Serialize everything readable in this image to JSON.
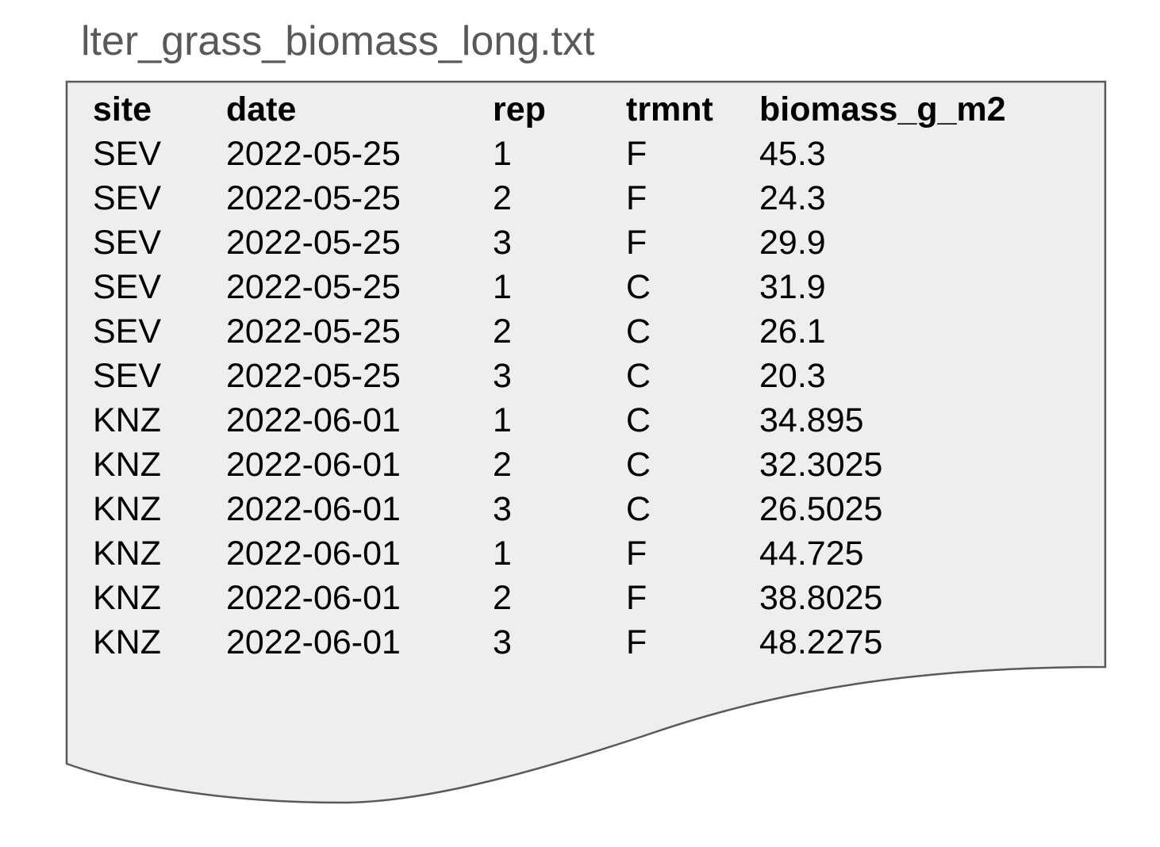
{
  "file": {
    "title": "lter_grass_biomass_long.txt"
  },
  "colors": {
    "title_text": "#595959",
    "document_fill": "#eeeeee",
    "document_border": "#595959",
    "table_text": "#000000"
  },
  "table": {
    "headers": [
      "site",
      "date",
      "rep",
      "trmnt",
      "biomass_g_m2"
    ],
    "rows": [
      [
        "SEV",
        "2022-05-25",
        "1",
        "F",
        "45.3"
      ],
      [
        "SEV",
        "2022-05-25",
        "2",
        "F",
        "24.3"
      ],
      [
        "SEV",
        "2022-05-25",
        "3",
        "F",
        "29.9"
      ],
      [
        "SEV",
        "2022-05-25",
        "1",
        "C",
        "31.9"
      ],
      [
        "SEV",
        "2022-05-25",
        "2",
        "C",
        "26.1"
      ],
      [
        "SEV",
        "2022-05-25",
        "3",
        "C",
        "20.3"
      ],
      [
        "KNZ",
        "2022-06-01",
        "1",
        "C",
        "34.895"
      ],
      [
        "KNZ",
        "2022-06-01",
        "2",
        "C",
        "32.3025"
      ],
      [
        "KNZ",
        "2022-06-01",
        "3",
        "C",
        "26.5025"
      ],
      [
        "KNZ",
        "2022-06-01",
        "1",
        "F",
        "44.725"
      ],
      [
        "KNZ",
        "2022-06-01",
        "2",
        "F",
        "38.8025"
      ],
      [
        "KNZ",
        "2022-06-01",
        "3",
        "F",
        "48.2275"
      ]
    ]
  }
}
